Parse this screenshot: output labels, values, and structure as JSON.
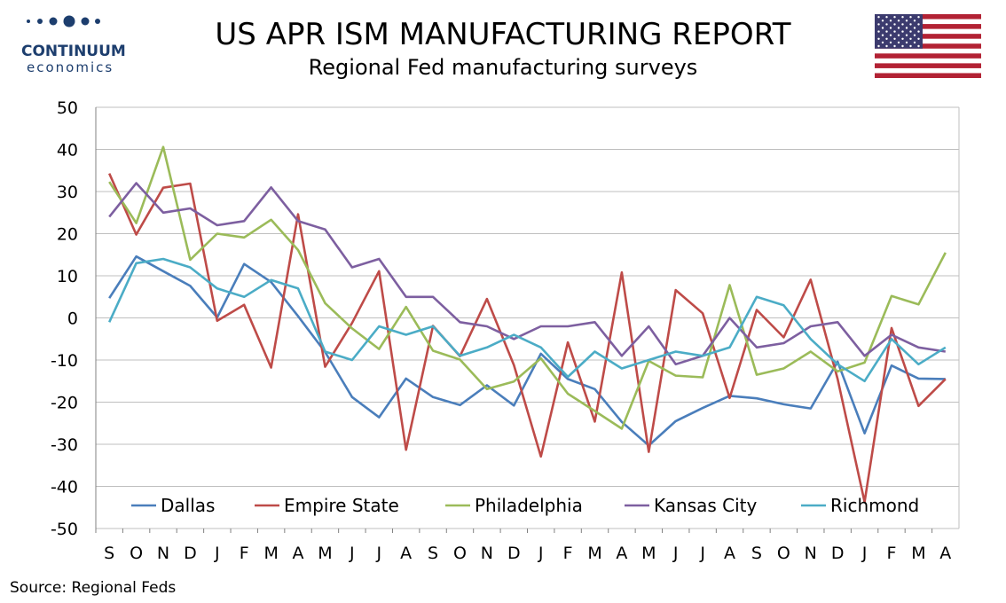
{
  "header": {
    "logo_word": "CONTINUUM",
    "logo_sub": "economics",
    "title": "US APR ISM MANUFACTURING REPORT",
    "subtitle": "Regional Fed manufacturing surveys",
    "flag_icon": "us-flag-icon"
  },
  "colors": {
    "logo": "#1d3e6e",
    "grid": "#bfbfbf",
    "axis": "#808080"
  },
  "chart_data": {
    "type": "line",
    "categories": [
      "S",
      "O",
      "N",
      "D",
      "J",
      "F",
      "M",
      "A",
      "M",
      "J",
      "J",
      "A",
      "S",
      "O",
      "N",
      "D",
      "J",
      "F",
      "M",
      "A",
      "M",
      "J",
      "J",
      "A",
      "S",
      "O",
      "N",
      "D",
      "J",
      "F",
      "M",
      "A"
    ],
    "ylim": [
      -50,
      50
    ],
    "yticks": [
      50,
      40,
      30,
      20,
      10,
      0,
      -10,
      -20,
      -30,
      -40,
      -50
    ],
    "grid": true,
    "legend_position": "bottom-inside",
    "series": [
      {
        "name": "Dallas",
        "color": "#4a7ebb",
        "values": [
          4.7,
          14.6,
          11.1,
          7.6,
          0.1,
          12.8,
          8.5,
          0.4,
          -8.1,
          -18.8,
          -23.6,
          -14.4,
          -18.8,
          -20.7,
          -16.0,
          -20.8,
          -8.5,
          -14.5,
          -16.9,
          -24.7,
          -30.3,
          -24.5,
          -21.4,
          -18.5,
          -19.1,
          -20.5,
          -21.5,
          -10.4,
          -27.4,
          -11.3,
          -14.4,
          -14.5
        ]
      },
      {
        "name": "Empire State",
        "color": "#be4b48",
        "values": [
          34.3,
          19.8,
          30.9,
          31.9,
          -0.7,
          3.1,
          -11.8,
          24.6,
          -11.6,
          -1.2,
          11.1,
          -31.3,
          -1.9,
          -9.1,
          4.5,
          -11.2,
          -32.9,
          -5.8,
          -24.6,
          10.8,
          -31.8,
          6.6,
          1.1,
          -19.0,
          1.9,
          -4.6,
          9.1,
          -14.5,
          -43.7,
          -2.4,
          -20.9,
          -14.5
        ]
      },
      {
        "name": "Philadelphia",
        "color": "#9bbb59",
        "values": [
          32.3,
          22.5,
          40.6,
          13.8,
          20.0,
          19.1,
          23.3,
          16.1,
          3.5,
          -2.5,
          -7.4,
          2.6,
          -7.8,
          -9.9,
          -16.9,
          -15.1,
          -9.6,
          -18.0,
          -22.1,
          -26.3,
          -10.2,
          -13.7,
          -14.1,
          7.8,
          -13.5,
          -12.0,
          -8.0,
          -12.7,
          -10.6,
          5.2,
          3.2,
          15.5
        ]
      },
      {
        "name": "Kansas City",
        "color": "#7d5fa0",
        "values": [
          24,
          32,
          25,
          26,
          22,
          23,
          31,
          23,
          21,
          12,
          14,
          5,
          5,
          -1,
          -2,
          -5,
          -2,
          -2,
          -1,
          -9,
          -2,
          -11,
          -9,
          0,
          -7,
          -6,
          -2,
          -1,
          -9,
          -4,
          -7,
          -8
        ]
      },
      {
        "name": "Richmond",
        "color": "#4bacc6",
        "values": [
          -1,
          13,
          14,
          12,
          7,
          5,
          9,
          7,
          -8,
          -10,
          -2,
          -4,
          -2,
          -9,
          -7,
          -4,
          -7,
          -14,
          -8,
          -12,
          -10,
          -8,
          -9,
          -7,
          5,
          3,
          -5,
          -11,
          -15,
          -5,
          -11,
          -7
        ]
      }
    ]
  },
  "footer": {
    "source": "Source: Regional Feds"
  }
}
